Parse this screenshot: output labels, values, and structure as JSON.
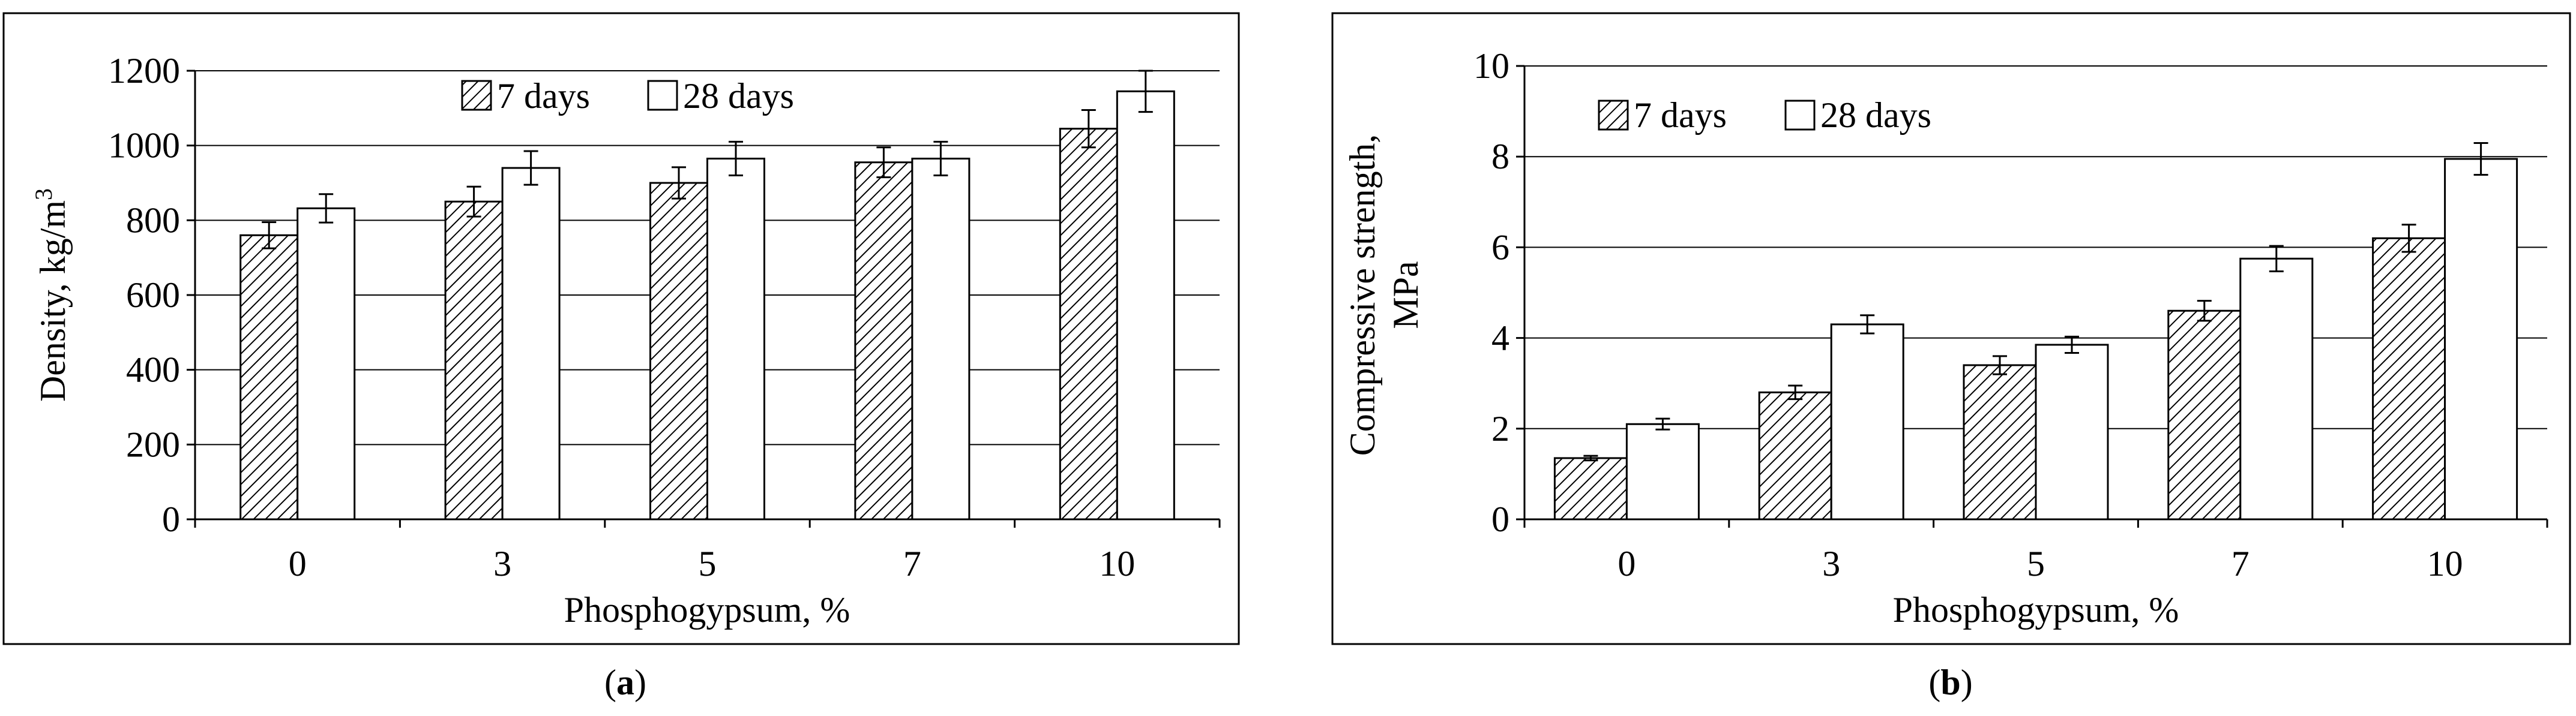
{
  "chart_data": [
    {
      "panel_label_open": "(",
      "panel_label_letter": "a",
      "panel_label_close": ")",
      "type": "bar",
      "title": "",
      "xlabel": "Phosphogypsum, %",
      "ylabel_main": "Density, kg/m",
      "ylabel_sup": "3",
      "categories": [
        "0",
        "3",
        "5",
        "7",
        "10"
      ],
      "ylim": [
        0,
        1200
      ],
      "yticks": [
        0,
        200,
        400,
        600,
        800,
        1000,
        1200
      ],
      "series": [
        {
          "name": "7 days",
          "values": [
            760,
            850,
            900,
            955,
            1045
          ],
          "errors": [
            35,
            40,
            42,
            40,
            50
          ],
          "pattern": "hatched"
        },
        {
          "name": "28 days",
          "values": [
            832,
            940,
            965,
            965,
            1145
          ],
          "errors": [
            38,
            45,
            45,
            45,
            55
          ],
          "pattern": "white"
        }
      ],
      "grid": true,
      "legend_position": "top"
    },
    {
      "panel_label_open": "(",
      "panel_label_letter": "b",
      "panel_label_close": ")",
      "type": "bar",
      "title": "",
      "xlabel": "Phosphogypsum, %",
      "ylabel_line1": "Compressive strength,",
      "ylabel_line2": "MPa",
      "categories": [
        "0",
        "3",
        "5",
        "7",
        "10"
      ],
      "ylim": [
        0,
        10
      ],
      "yticks": [
        0,
        2,
        4,
        6,
        8,
        10
      ],
      "series": [
        {
          "name": "7 days",
          "values": [
            1.35,
            2.8,
            3.4,
            4.6,
            6.2
          ],
          "errors": [
            0.05,
            0.15,
            0.2,
            0.22,
            0.3
          ],
          "pattern": "hatched"
        },
        {
          "name": "28 days",
          "values": [
            2.1,
            4.3,
            3.85,
            5.75,
            7.95
          ],
          "errors": [
            0.12,
            0.2,
            0.18,
            0.28,
            0.35
          ],
          "pattern": "white"
        }
      ],
      "grid": true,
      "legend_position": "top-left"
    }
  ]
}
